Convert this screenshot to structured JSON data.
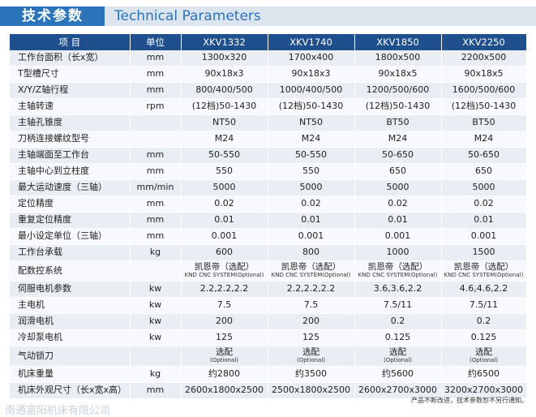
{
  "header": {
    "title_cn": "技术参数",
    "title_en": "Technical Parameters"
  },
  "columns": [
    "项 目",
    "单位",
    "XKV1332",
    "XKV1740",
    "XKV1850",
    "XKV2250"
  ],
  "rows": [
    {
      "label": "工作台面积（长x宽）",
      "unit": "mm",
      "values": [
        "1300x320",
        "1700x400",
        "1800x500",
        "2200x500"
      ]
    },
    {
      "label": "T型槽尺寸",
      "unit": "mm",
      "values": [
        "90x18x3",
        "90x18x3",
        "90x18x5",
        "90x18x5"
      ]
    },
    {
      "label": "X/Y/Z轴行程",
      "unit": "mm",
      "values": [
        "800/400/500",
        "1000/400/500",
        "1200/500/600",
        "1600/500/600"
      ]
    },
    {
      "label": "主轴转速",
      "unit": "rpm",
      "values": [
        "(12档)50-1430",
        "(12档)50-1430",
        "(12档)50-1430",
        "(12档)50-1430"
      ]
    },
    {
      "label": "主轴孔锥度",
      "unit": "",
      "values": [
        "NT50",
        "NT50",
        "BT50",
        "BT50"
      ]
    },
    {
      "label": "刀柄连接螺纹型号",
      "unit": "",
      "values": [
        "M24",
        "M24",
        "M24",
        "M24"
      ]
    },
    {
      "label": "主轴端面至工作台",
      "unit": "mm",
      "values": [
        "50-550",
        "50-550",
        "50-650",
        "50-650"
      ]
    },
    {
      "label": "主轴中心到立柱度",
      "unit": "mm",
      "values": [
        "550",
        "550",
        "650",
        "650"
      ]
    },
    {
      "label": "最大运动速度（三轴）",
      "unit": "mm/min",
      "values": [
        "5000",
        "5000",
        "5000",
        "5000"
      ]
    },
    {
      "label": "定位精度",
      "unit": "mm",
      "values": [
        "0.02",
        "0.02",
        "0.02",
        "0.02"
      ]
    },
    {
      "label": "重复定位精度",
      "unit": "mm",
      "values": [
        "0.01",
        "0.01",
        "0.01",
        "0.01"
      ]
    },
    {
      "label": "最小设定单位（三轴）",
      "unit": "mm",
      "values": [
        "0.001",
        "0.001",
        "0.001",
        "0.001"
      ]
    },
    {
      "label": "工作台承载",
      "unit": "kg",
      "values": [
        "600",
        "800",
        "1000",
        "1500"
      ]
    },
    {
      "label": "配数控系统",
      "unit": "",
      "tall": true,
      "values": [
        [
          "凯恩帝（选配）",
          "KND CNC SYSTEM(Optional)"
        ],
        [
          "凯恩帝（选配）",
          "KND CNC SYSTEM(Optional)"
        ],
        [
          "凯恩帝（选配）",
          "KND CNC SYSTEM(Optional)"
        ],
        [
          "凯恩帝（选配）",
          "KND CNC SYSTEM(Optional)"
        ]
      ]
    },
    {
      "label": "伺服电机参数",
      "unit": "kw",
      "values": [
        "2.2,2.2,2.2",
        "2.2,2.2,2.2",
        "3.6,3.6,2.2",
        "4.6,4.6,2.2"
      ]
    },
    {
      "label": "主电机",
      "unit": "kw",
      "values": [
        "7.5",
        "7.5",
        "7.5/11",
        "7.5/11"
      ]
    },
    {
      "label": "润滑电机",
      "unit": "kw",
      "values": [
        "200",
        "200",
        "0.2",
        "0.2"
      ]
    },
    {
      "label": "冷却泵电机",
      "unit": "kw",
      "values": [
        "125",
        "125",
        "0.125",
        "0.125"
      ]
    },
    {
      "label": "气动锁刀",
      "unit": "",
      "tall": true,
      "values": [
        [
          "选配",
          "(Optional)"
        ],
        [
          "选配",
          "(Optional)"
        ],
        [
          "选配",
          "(Optional)"
        ],
        [
          "选配",
          "(Optional)"
        ]
      ]
    },
    {
      "label": "机床重量",
      "unit": "kg",
      "values": [
        "约2800",
        "约3500",
        "约5600",
        "约6500"
      ]
    },
    {
      "label": "机床外观尺寸（长x宽x高）",
      "unit": "mm",
      "values": [
        "2600x1800x2500",
        "2500x1800x2500",
        "2600x2700x3000",
        "3200x2700x3000"
      ]
    }
  ],
  "footnote": "产品不断改进，技术参数恕不另行通知。",
  "company": "南通富阳机床有限公司",
  "colors": {
    "header_blue": "#1f4f8c",
    "title_blue": "#2b74ba"
  }
}
